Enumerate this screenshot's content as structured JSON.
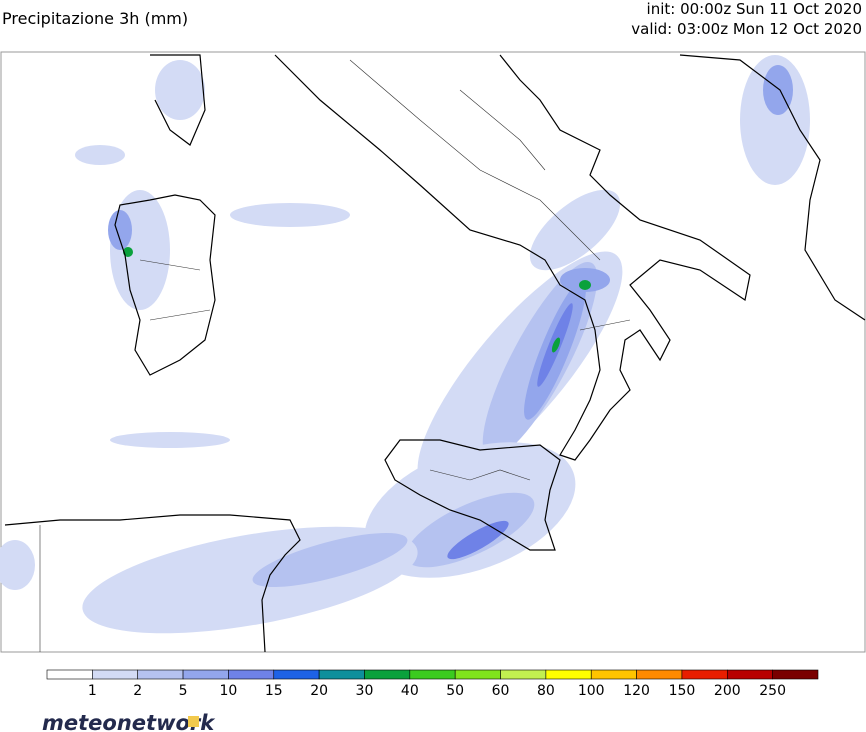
{
  "header": {
    "title": "Precipitazione 3h (mm)",
    "init": "init: 00:00z Sun 11 Oct 2020",
    "valid": "valid: 03:00z Mon 12 Oct 2020"
  },
  "legend": {
    "colors": [
      "#ffffff",
      "#d3dbf5",
      "#b5c2f0",
      "#93a6ec",
      "#6f82e7",
      "#1e62e6",
      "#0f8f9c",
      "#0aa13c",
      "#3bcb1f",
      "#80e41c",
      "#c2f050",
      "#ffff00",
      "#ffc400",
      "#ff8a00",
      "#e81e00",
      "#b80000",
      "#7a0000"
    ],
    "ticks": [
      1,
      2,
      5,
      10,
      15,
      20,
      30,
      40,
      50,
      60,
      80,
      100,
      120,
      150,
      200,
      250
    ]
  },
  "logo": "meteonetwork"
}
